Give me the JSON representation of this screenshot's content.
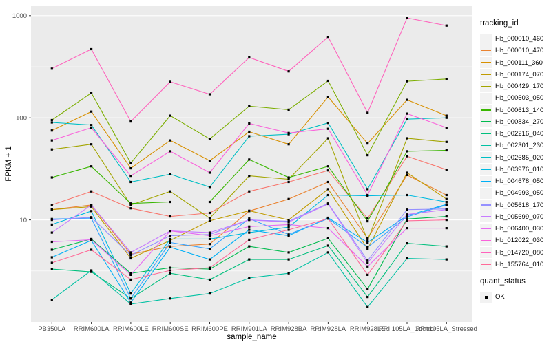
{
  "figure": {
    "background": "#FFFFFF",
    "panel_bg": "#EBEBEB",
    "grid_color": "#FFFFFF",
    "axis_text_color": "#4D4D4D",
    "point_color": "#000000"
  },
  "axes": {
    "x_title": "sample_name",
    "y_title": "FPKM + 1",
    "y_tick_labels": [
      "10",
      "100",
      "1000"
    ]
  },
  "legend": {
    "tracking_title": "tracking_id",
    "quant_title": "quant_status",
    "quant_items": [
      {
        "label": "OK",
        "marker": "black-square"
      }
    ]
  },
  "chart_data": {
    "type": "line",
    "title": "",
    "xlabel": "sample_name",
    "ylabel": "FPKM + 1",
    "y_scale": "log10",
    "ylim": [
      1,
      1100
    ],
    "y_major_ticks": [
      10,
      100,
      1000
    ],
    "y_minor_ticks": [
      3.162,
      31.62,
      316.2
    ],
    "grid": true,
    "legend_position": "right",
    "point_marker": "small-black-square",
    "categories": [
      "PB350LA",
      "RRIM600LA",
      "RRIM600LE",
      "RRIM600SE",
      "RRIM600PE",
      "RRIM901LA",
      "RRIM928BA",
      "RRIM928LA",
      "RRIM928LE",
      "RRII105LA_Control",
      "RRII105LA_Stressed"
    ],
    "series": [
      {
        "name": "Hb_000010_460",
        "color": "#F8766D",
        "values": [
          14,
          19,
          13,
          10.8,
          11.7,
          19,
          23.5,
          30.5,
          10.3,
          42,
          31
        ]
      },
      {
        "name": "Hb_000010_470",
        "color": "#EA8331",
        "values": [
          12.6,
          14,
          4.6,
          5.5,
          5.8,
          12.2,
          16,
          23.5,
          6.6,
          27.5,
          17.5
        ]
      },
      {
        "name": "Hb_000111_360",
        "color": "#D89000",
        "values": [
          75,
          115,
          32,
          60,
          38,
          73,
          55,
          160,
          56,
          150,
          105
        ]
      },
      {
        "name": "Hb_000174_070",
        "color": "#C09B00",
        "values": [
          12.6,
          13.5,
          4.2,
          6.3,
          9.8,
          12.3,
          10,
          20,
          5.2,
          29,
          16
        ]
      },
      {
        "name": "Hb_000429_170",
        "color": "#A3A500",
        "values": [
          49,
          55,
          14,
          19,
          10.4,
          27,
          25,
          63,
          6.3,
          63,
          58
        ]
      },
      {
        "name": "Hb_000503_050",
        "color": "#7CAE00",
        "values": [
          95,
          175,
          36,
          105,
          62,
          130,
          120,
          230,
          43,
          228,
          240
        ]
      },
      {
        "name": "Hb_000613_140",
        "color": "#39B600",
        "values": [
          26,
          33.5,
          14.5,
          15,
          15,
          39,
          26,
          33.5,
          9.7,
          47,
          48
        ]
      },
      {
        "name": "Hb_000834_270",
        "color": "#00BB4E",
        "values": [
          5.1,
          6.5,
          3.0,
          3.4,
          3.3,
          5.5,
          4.8,
          6.6,
          2.1,
          10.2,
          10.8
        ]
      },
      {
        "name": "Hb_002216_040",
        "color": "#00BF7D",
        "values": [
          3.3,
          3.1,
          1.7,
          3.0,
          2.6,
          4.1,
          4.1,
          5.6,
          1.76,
          5.9,
          5.5
        ]
      },
      {
        "name": "Hb_002301_230",
        "color": "#00C1A3",
        "values": [
          1.65,
          3.2,
          1.5,
          1.7,
          1.9,
          2.7,
          3.0,
          4.8,
          1.4,
          4.2,
          4.1
        ]
      },
      {
        "name": "Hb_002685_020",
        "color": "#00BFC4",
        "values": [
          90,
          85,
          23.5,
          28,
          21,
          66,
          69,
          89,
          20,
          97,
          100
        ]
      },
      {
        "name": "Hb_003976_010",
        "color": "#00BAE0",
        "values": [
          9,
          12.2,
          1.9,
          6.5,
          6.5,
          7.5,
          8.5,
          17.5,
          17.2,
          17.5,
          15
        ]
      },
      {
        "name": "Hb_004678_050",
        "color": "#00B0F6",
        "values": [
          4.3,
          6.3,
          1.55,
          5.4,
          4.1,
          8.0,
          7.0,
          10.5,
          6.0,
          11.0,
          14.2
        ]
      },
      {
        "name": "Hb_004993_050",
        "color": "#35A2FF",
        "values": [
          10.2,
          10.4,
          1.7,
          6.0,
          5.2,
          10.3,
          7.2,
          10.3,
          5.4,
          10.7,
          14.0
        ]
      },
      {
        "name": "Hb_005618_170",
        "color": "#9590FF",
        "values": [
          10.0,
          10.6,
          4.5,
          7.0,
          7.2,
          10.0,
          9.7,
          14.5,
          4.0,
          12.6,
          12.8
        ]
      },
      {
        "name": "Hb_005699_070",
        "color": "#C77CFF",
        "values": [
          7.5,
          14,
          4.8,
          7.8,
          7.5,
          10.0,
          9.5,
          14.3,
          3.8,
          11.3,
          12.6
        ]
      },
      {
        "name": "Hb_006400_030",
        "color": "#E76BF3",
        "values": [
          6.1,
          6.4,
          2.9,
          7.8,
          7.0,
          8.6,
          9.0,
          8.3,
          3.5,
          8.3,
          8.3
        ]
      },
      {
        "name": "Hb_012022_030",
        "color": "#FA62DB",
        "values": [
          60,
          80,
          27,
          47,
          29,
          88,
          71,
          78,
          17.5,
          110,
          80
        ]
      },
      {
        "name": "Hb_014720_080",
        "color": "#FF62BC",
        "values": [
          303,
          470,
          92,
          225,
          170,
          390,
          285,
          620,
          112,
          950,
          800
        ]
      },
      {
        "name": "Hb_155764_010",
        "color": "#FF6A98",
        "values": [
          3.8,
          5.1,
          2.6,
          3.2,
          3.4,
          6.4,
          8.0,
          10.3,
          2.9,
          9.8,
          10.0
        ]
      }
    ]
  }
}
